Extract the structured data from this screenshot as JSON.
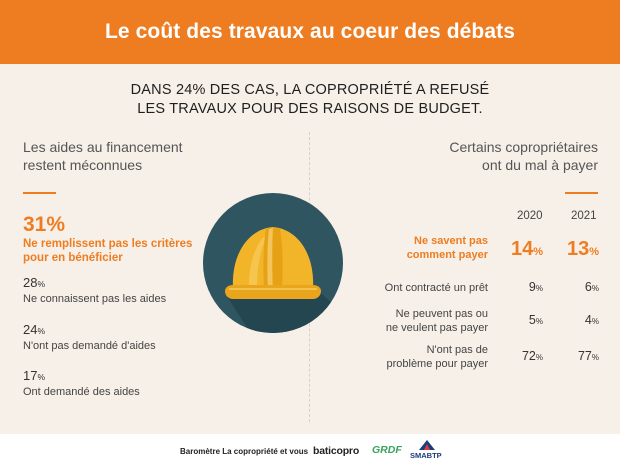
{
  "header": {
    "title": "Le coût des travaux au coeur des débats"
  },
  "subhead": {
    "line1": "DANS 24% DES CAS, LA COPROPRIÉTÉ A REFUSÉ",
    "line2": "LES TRAVAUX POUR DES RAISONS DE BUDGET."
  },
  "left": {
    "title_line1": "Les aides au financement",
    "title_line2": "restent méconnues",
    "stats": [
      {
        "value": "31%",
        "label_line1": "Ne remplissent pas les critères",
        "label_line2": "pour en bénéficier"
      },
      {
        "value": "28",
        "unit": "%",
        "label": "Ne connaissent pas les aides"
      },
      {
        "value": "24",
        "unit": "%",
        "label": "N'ont pas demandé d'aides"
      },
      {
        "value": "17",
        "unit": "%",
        "label": "Ont demandé des aides"
      }
    ]
  },
  "right": {
    "title_line1": "Certains copropriétaires",
    "title_line2": "ont du mal à payer",
    "years": [
      "2020",
      "2021"
    ],
    "rows": [
      {
        "label_line1": "Ne savent pas",
        "label_line2": "comment payer",
        "v2020": "14",
        "v2021": "13",
        "unit": "%"
      },
      {
        "label_line1": "Ont contracté un prêt",
        "label_line2": "",
        "v2020": "9",
        "v2021": "6",
        "unit": "%"
      },
      {
        "label_line1": "Ne peuvent pas ou",
        "label_line2": "ne veulent pas payer",
        "v2020": "5",
        "v2021": "4",
        "unit": "%"
      },
      {
        "label_line1": "N'ont pas de",
        "label_line2": "problème pour payer",
        "v2020": "72",
        "v2021": "77",
        "unit": "%"
      }
    ]
  },
  "footer": {
    "barometre": "Baromètre La copropriété et vous",
    "baticopro": "baticopro",
    "grdf": "GRDF",
    "smabtp": "SMABTP"
  },
  "colors": {
    "accent": "#ee7d22",
    "background": "#f6f0e8",
    "circle": "#2f5560",
    "helmet": "#f2b52a"
  }
}
